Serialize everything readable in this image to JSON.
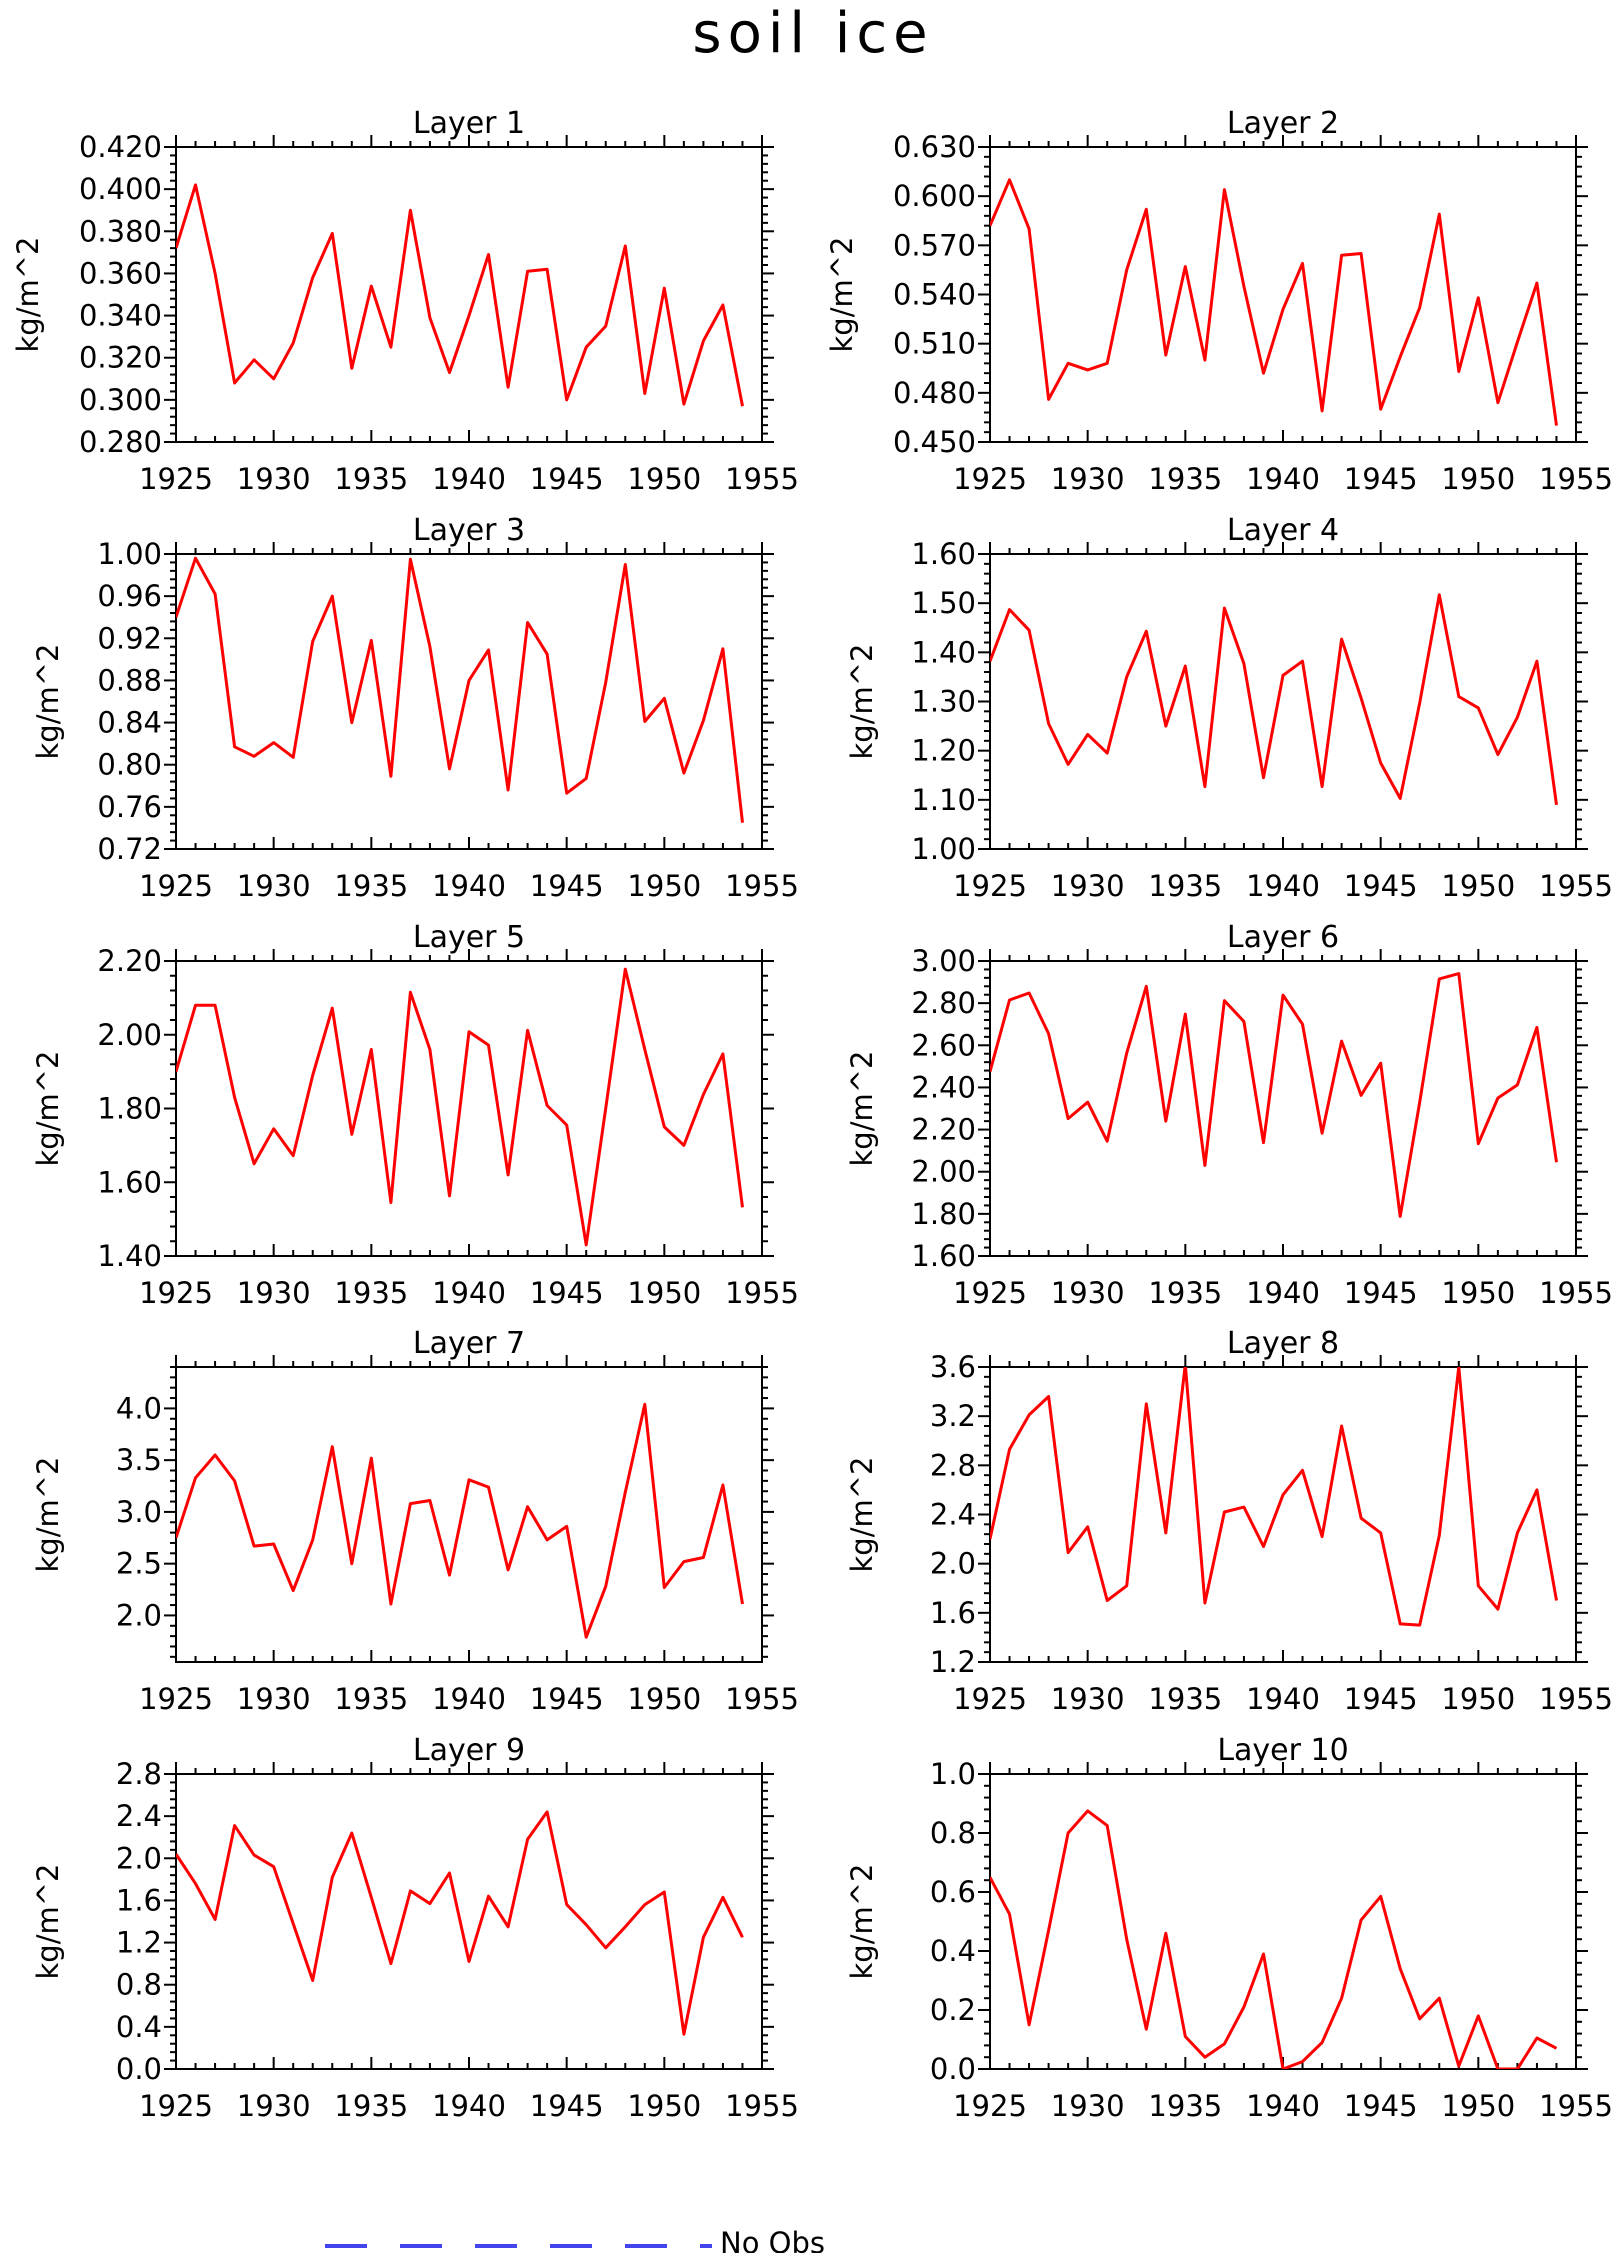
{
  "title": "soil ice",
  "legend": {
    "label": "No Obs",
    "color": "#4444ee",
    "style": "dashed"
  },
  "colors": {
    "series": "#ff0000",
    "axes": "#000000",
    "background": "#ffffff"
  },
  "chart_data": [
    {
      "type": "line",
      "title": "Layer 1",
      "ylabel": "kg/m^2",
      "xlim": [
        1925,
        1955
      ],
      "ylim": [
        0.28,
        0.42
      ],
      "xticks": [
        "1925",
        "1930",
        "1935",
        "1940",
        "1945",
        "1950",
        "1955"
      ],
      "yticks": [
        "0.280",
        "0.300",
        "0.320",
        "0.340",
        "0.360",
        "0.380",
        "0.400",
        "0.420"
      ],
      "x": [
        1925,
        1926,
        1927,
        1928,
        1929,
        1930,
        1931,
        1932,
        1933,
        1934,
        1935,
        1936,
        1937,
        1938,
        1939,
        1940,
        1941,
        1942,
        1943,
        1944,
        1945,
        1946,
        1947,
        1948,
        1949,
        1950,
        1951,
        1952,
        1953,
        1954
      ],
      "y": [
        0.372,
        0.402,
        0.36,
        0.308,
        0.319,
        0.31,
        0.327,
        0.358,
        0.379,
        0.315,
        0.354,
        0.325,
        0.39,
        0.339,
        0.313,
        0.34,
        0.369,
        0.306,
        0.361,
        0.362,
        0.3,
        0.325,
        0.335,
        0.373,
        0.303,
        0.353,
        0.298,
        0.328,
        0.345,
        0.297
      ]
    },
    {
      "type": "line",
      "title": "Layer 2",
      "ylabel": "kg/m^2",
      "xlim": [
        1925,
        1955
      ],
      "ylim": [
        0.45,
        0.63
      ],
      "xticks": [
        "1925",
        "1930",
        "1935",
        "1940",
        "1945",
        "1950",
        "1955"
      ],
      "yticks": [
        "0.450",
        "0.480",
        "0.510",
        "0.540",
        "0.570",
        "0.600",
        "0.630"
      ],
      "x": [
        1925,
        1926,
        1927,
        1928,
        1929,
        1930,
        1931,
        1932,
        1933,
        1934,
        1935,
        1936,
        1937,
        1938,
        1939,
        1940,
        1941,
        1942,
        1943,
        1944,
        1945,
        1946,
        1947,
        1948,
        1949,
        1950,
        1951,
        1952,
        1953,
        1954
      ],
      "y": [
        0.582,
        0.61,
        0.58,
        0.476,
        0.498,
        0.494,
        0.498,
        0.555,
        0.592,
        0.503,
        0.557,
        0.5,
        0.604,
        0.545,
        0.492,
        0.531,
        0.559,
        0.469,
        0.564,
        0.565,
        0.47,
        0.502,
        0.532,
        0.589,
        0.493,
        0.538,
        0.474,
        0.511,
        0.547,
        0.46
      ]
    },
    {
      "type": "line",
      "title": "Layer 3",
      "ylabel": "kg/m^2",
      "xlim": [
        1925,
        1955
      ],
      "ylim": [
        0.72,
        1.0
      ],
      "xticks": [
        "1925",
        "1930",
        "1935",
        "1940",
        "1945",
        "1950",
        "1955"
      ],
      "yticks": [
        "0.72",
        "0.76",
        "0.80",
        "0.84",
        "0.88",
        "0.92",
        "0.96",
        "1.00"
      ],
      "x": [
        1925,
        1926,
        1927,
        1928,
        1929,
        1930,
        1931,
        1932,
        1933,
        1934,
        1935,
        1936,
        1937,
        1938,
        1939,
        1940,
        1941,
        1942,
        1943,
        1944,
        1945,
        1946,
        1947,
        1948,
        1949,
        1950,
        1951,
        1952,
        1953,
        1954
      ],
      "y": [
        0.94,
        0.996,
        0.962,
        0.817,
        0.808,
        0.821,
        0.807,
        0.917,
        0.96,
        0.84,
        0.918,
        0.789,
        0.995,
        0.912,
        0.796,
        0.88,
        0.909,
        0.776,
        0.935,
        0.905,
        0.773,
        0.787,
        0.878,
        0.99,
        0.841,
        0.863,
        0.792,
        0.842,
        0.91,
        0.745
      ]
    },
    {
      "type": "line",
      "title": "Layer 4",
      "ylabel": "kg/m^2",
      "xlim": [
        1925,
        1955
      ],
      "ylim": [
        1.0,
        1.6
      ],
      "xticks": [
        "1925",
        "1930",
        "1935",
        "1940",
        "1945",
        "1950",
        "1955"
      ],
      "yticks": [
        "1.00",
        "1.10",
        "1.20",
        "1.30",
        "1.40",
        "1.50",
        "1.60"
      ],
      "x": [
        1925,
        1926,
        1927,
        1928,
        1929,
        1930,
        1931,
        1932,
        1933,
        1934,
        1935,
        1936,
        1937,
        1938,
        1939,
        1940,
        1941,
        1942,
        1943,
        1944,
        1945,
        1946,
        1947,
        1948,
        1949,
        1950,
        1951,
        1952,
        1953,
        1954
      ],
      "y": [
        1.382,
        1.487,
        1.445,
        1.255,
        1.172,
        1.233,
        1.195,
        1.35,
        1.443,
        1.25,
        1.372,
        1.127,
        1.49,
        1.377,
        1.145,
        1.353,
        1.382,
        1.127,
        1.427,
        1.307,
        1.175,
        1.103,
        1.297,
        1.517,
        1.31,
        1.287,
        1.192,
        1.268,
        1.382,
        1.09
      ]
    },
    {
      "type": "line",
      "title": "Layer 5",
      "ylabel": "kg/m^2",
      "xlim": [
        1925,
        1955
      ],
      "ylim": [
        1.4,
        2.2
      ],
      "xticks": [
        "1925",
        "1930",
        "1935",
        "1940",
        "1945",
        "1950",
        "1955"
      ],
      "yticks": [
        "1.40",
        "1.60",
        "1.80",
        "2.00",
        "2.20"
      ],
      "x": [
        1925,
        1926,
        1927,
        1928,
        1929,
        1930,
        1931,
        1932,
        1933,
        1934,
        1935,
        1936,
        1937,
        1938,
        1939,
        1940,
        1941,
        1942,
        1943,
        1944,
        1945,
        1946,
        1947,
        1948,
        1949,
        1950,
        1951,
        1952,
        1953,
        1954
      ],
      "y": [
        1.9,
        2.08,
        2.08,
        1.83,
        1.65,
        1.745,
        1.672,
        1.89,
        2.072,
        1.73,
        1.96,
        1.545,
        2.115,
        1.96,
        1.563,
        2.008,
        1.972,
        1.62,
        2.012,
        1.808,
        1.755,
        1.43,
        1.8,
        2.178,
        1.96,
        1.75,
        1.7,
        1.838,
        1.948,
        1.532
      ]
    },
    {
      "type": "line",
      "title": "Layer 6",
      "ylabel": "kg/m^2",
      "xlim": [
        1925,
        1955
      ],
      "ylim": [
        1.6,
        3.0
      ],
      "xticks": [
        "1925",
        "1930",
        "1935",
        "1940",
        "1945",
        "1950",
        "1955"
      ],
      "yticks": [
        "1.60",
        "1.80",
        "2.00",
        "2.20",
        "2.40",
        "2.60",
        "2.80",
        "3.00"
      ],
      "x": [
        1925,
        1926,
        1927,
        1928,
        1929,
        1930,
        1931,
        1932,
        1933,
        1934,
        1935,
        1936,
        1937,
        1938,
        1939,
        1940,
        1941,
        1942,
        1943,
        1944,
        1945,
        1946,
        1947,
        1948,
        1949,
        1950,
        1951,
        1952,
        1953,
        1954
      ],
      "y": [
        2.475,
        2.815,
        2.848,
        2.655,
        2.252,
        2.33,
        2.145,
        2.563,
        2.88,
        2.24,
        2.748,
        2.03,
        2.812,
        2.713,
        2.138,
        2.838,
        2.7,
        2.183,
        2.62,
        2.362,
        2.515,
        1.788,
        2.33,
        2.915,
        2.94,
        2.133,
        2.35,
        2.412,
        2.685,
        2.045
      ]
    },
    {
      "type": "line",
      "title": "Layer 7",
      "ylabel": "kg/m^2",
      "xlim": [
        1925,
        1955
      ],
      "ylim": [
        1.55,
        4.4
      ],
      "xticks": [
        "1925",
        "1930",
        "1935",
        "1940",
        "1945",
        "1950",
        "1955"
      ],
      "yticks": [
        "2.0",
        "2.5",
        "3.0",
        "3.5",
        "4.0"
      ],
      "x": [
        1925,
        1926,
        1927,
        1928,
        1929,
        1930,
        1931,
        1932,
        1933,
        1934,
        1935,
        1936,
        1937,
        1938,
        1939,
        1940,
        1941,
        1942,
        1943,
        1944,
        1945,
        1946,
        1947,
        1948,
        1949,
        1950,
        1951,
        1952,
        1953,
        1954
      ],
      "y": [
        2.75,
        3.33,
        3.55,
        3.3,
        2.67,
        2.69,
        2.24,
        2.73,
        3.63,
        2.5,
        3.52,
        2.11,
        3.08,
        3.11,
        2.39,
        3.31,
        3.24,
        2.44,
        3.05,
        2.73,
        2.86,
        1.79,
        2.28,
        3.19,
        4.04,
        2.27,
        2.52,
        2.56,
        3.26,
        2.11
      ]
    },
    {
      "type": "line",
      "title": "Layer 8",
      "ylabel": "kg/m^2",
      "xlim": [
        1925,
        1955
      ],
      "ylim": [
        1.2,
        3.6
      ],
      "xticks": [
        "1925",
        "1930",
        "1935",
        "1940",
        "1945",
        "1950",
        "1955"
      ],
      "yticks": [
        "1.2",
        "1.6",
        "2.0",
        "2.4",
        "2.8",
        "3.2",
        "3.6"
      ],
      "x": [
        1925,
        1926,
        1927,
        1928,
        1929,
        1930,
        1931,
        1932,
        1933,
        1934,
        1935,
        1936,
        1937,
        1938,
        1939,
        1940,
        1941,
        1942,
        1943,
        1944,
        1945,
        1946,
        1947,
        1948,
        1949,
        1950,
        1951,
        1952,
        1953,
        1954
      ],
      "y": [
        2.2,
        2.93,
        3.21,
        3.36,
        2.09,
        2.3,
        1.7,
        1.82,
        3.3,
        2.25,
        3.62,
        1.68,
        2.42,
        2.46,
        2.14,
        2.56,
        2.76,
        2.22,
        3.12,
        2.37,
        2.25,
        1.51,
        1.5,
        2.23,
        3.6,
        1.82,
        1.63,
        2.25,
        2.6,
        1.7
      ]
    },
    {
      "type": "line",
      "title": "Layer 9",
      "ylabel": "kg/m^2",
      "xlim": [
        1925,
        1955
      ],
      "ylim": [
        0.0,
        2.8
      ],
      "xticks": [
        "1925",
        "1930",
        "1935",
        "1940",
        "1945",
        "1950",
        "1955"
      ],
      "yticks": [
        "0.0",
        "0.4",
        "0.8",
        "1.2",
        "1.6",
        "2.0",
        "2.4",
        "2.8"
      ],
      "x": [
        1925,
        1926,
        1927,
        1928,
        1929,
        1930,
        1931,
        1932,
        1933,
        1934,
        1935,
        1936,
        1937,
        1938,
        1939,
        1940,
        1941,
        1942,
        1943,
        1944,
        1945,
        1946,
        1947,
        1948,
        1949,
        1950,
        1951,
        1952,
        1953,
        1954
      ],
      "y": [
        2.04,
        1.76,
        1.42,
        2.31,
        2.03,
        1.92,
        1.38,
        0.84,
        1.82,
        2.24,
        1.63,
        1.0,
        1.69,
        1.57,
        1.86,
        1.02,
        1.64,
        1.35,
        2.18,
        2.44,
        1.56,
        1.37,
        1.15,
        1.35,
        1.56,
        1.68,
        0.33,
        1.25,
        1.63,
        1.25
      ]
    },
    {
      "type": "line",
      "title": "Layer 10",
      "ylabel": "kg/m^2",
      "xlim": [
        1925,
        1955
      ],
      "ylim": [
        0.0,
        1.0
      ],
      "xticks": [
        "1925",
        "1930",
        "1935",
        "1940",
        "1945",
        "1950",
        "1955"
      ],
      "yticks": [
        "0.0",
        "0.2",
        "0.4",
        "0.6",
        "0.8",
        "1.0"
      ],
      "x": [
        1925,
        1926,
        1927,
        1928,
        1929,
        1930,
        1931,
        1932,
        1933,
        1934,
        1935,
        1936,
        1937,
        1938,
        1939,
        1940,
        1941,
        1942,
        1943,
        1944,
        1945,
        1946,
        1947,
        1948,
        1949,
        1950,
        1951,
        1952,
        1953,
        1954
      ],
      "y": [
        0.65,
        0.525,
        0.15,
        0.47,
        0.8,
        0.875,
        0.825,
        0.44,
        0.135,
        0.46,
        0.11,
        0.04,
        0.085,
        0.21,
        0.39,
        0.0,
        0.025,
        0.09,
        0.24,
        0.505,
        0.585,
        0.34,
        0.17,
        0.24,
        0.01,
        0.18,
        0.0,
        0.0,
        0.105,
        0.07
      ]
    }
  ]
}
